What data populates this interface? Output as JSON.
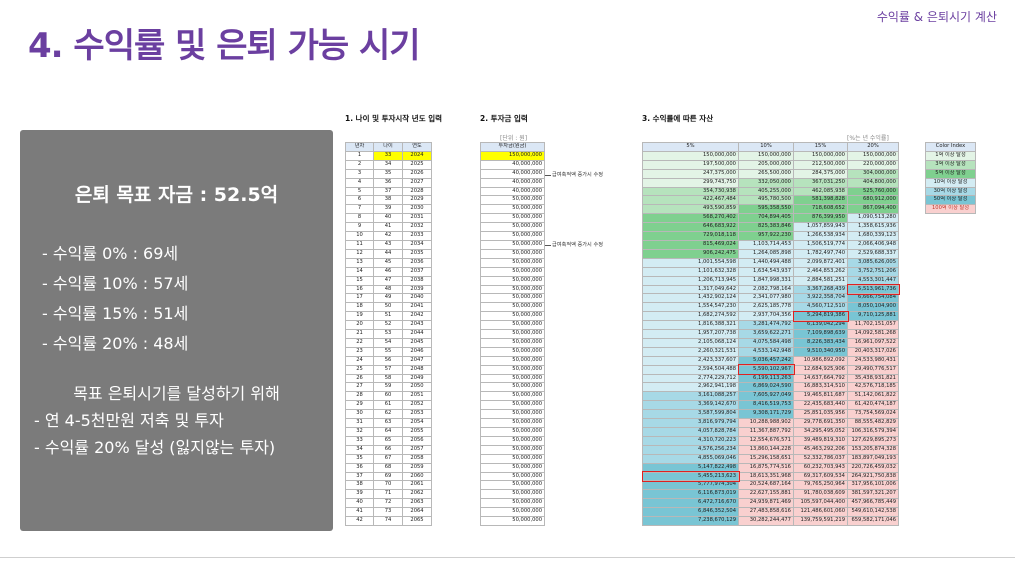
{
  "header": {
    "title": "4. 수익률 및 은퇴 가능 시기",
    "tag": "수익률 & 은퇴시기 계산"
  },
  "summary": {
    "goal": "은퇴 목표 자금 : 52.5억",
    "lines": [
      "- 수익률   0% : 69세",
      "- 수익률 10% : 57세",
      "- 수익률 15% : 51세",
      "- 수익률 20% : 48세"
    ],
    "subtitle": "목표 은퇴시기를 달성하기 위해",
    "actions": [
      "- 연 4-5천만원 저축 및 투자",
      "- 수익률 20% 달성 (잃지않는 투자)"
    ]
  },
  "sections": {
    "s1": "1. 나이 및 투자시작 년도 입력",
    "s2": "2. 투자금 입력",
    "s3": "3. 수익률에 따른 자산"
  },
  "notes": {
    "unit_won": "[단위 : 원]",
    "unit_rate": "[%는 년 수익률]",
    "note1": "급여축적액 증가시 수정",
    "note2": "급여축적액 증가시 수정"
  },
  "table1": {
    "headers": [
      "년차",
      "나이",
      "연도"
    ],
    "rows": [
      [
        "1",
        "33",
        "2024"
      ],
      [
        "2",
        "34",
        "2025"
      ],
      [
        "3",
        "35",
        "2026"
      ],
      [
        "4",
        "36",
        "2027"
      ],
      [
        "5",
        "37",
        "2028"
      ],
      [
        "6",
        "38",
        "2029"
      ],
      [
        "7",
        "39",
        "2030"
      ],
      [
        "8",
        "40",
        "2031"
      ],
      [
        "9",
        "41",
        "2032"
      ],
      [
        "10",
        "42",
        "2033"
      ],
      [
        "11",
        "43",
        "2034"
      ],
      [
        "12",
        "44",
        "2035"
      ],
      [
        "13",
        "45",
        "2036"
      ],
      [
        "14",
        "46",
        "2037"
      ],
      [
        "15",
        "47",
        "2038"
      ],
      [
        "16",
        "48",
        "2039"
      ],
      [
        "17",
        "49",
        "2040"
      ],
      [
        "18",
        "50",
        "2041"
      ],
      [
        "19",
        "51",
        "2042"
      ],
      [
        "20",
        "52",
        "2043"
      ],
      [
        "21",
        "53",
        "2044"
      ],
      [
        "22",
        "54",
        "2045"
      ],
      [
        "23",
        "55",
        "2046"
      ],
      [
        "24",
        "56",
        "2047"
      ],
      [
        "25",
        "57",
        "2048"
      ],
      [
        "26",
        "58",
        "2049"
      ],
      [
        "27",
        "59",
        "2050"
      ],
      [
        "28",
        "60",
        "2051"
      ],
      [
        "29",
        "61",
        "2052"
      ],
      [
        "30",
        "62",
        "2053"
      ],
      [
        "31",
        "63",
        "2054"
      ],
      [
        "32",
        "64",
        "2055"
      ],
      [
        "33",
        "65",
        "2056"
      ],
      [
        "34",
        "66",
        "2057"
      ],
      [
        "35",
        "67",
        "2058"
      ],
      [
        "36",
        "68",
        "2059"
      ],
      [
        "37",
        "69",
        "2060"
      ],
      [
        "38",
        "70",
        "2061"
      ],
      [
        "39",
        "71",
        "2062"
      ],
      [
        "40",
        "72",
        "2063"
      ],
      [
        "41",
        "73",
        "2064"
      ],
      [
        "42",
        "74",
        "2065"
      ]
    ]
  },
  "table2": {
    "header": "투자금(원금)",
    "rows": [
      "150,000,000",
      "40,000,000",
      "40,000,000",
      "40,000,000",
      "40,000,000",
      "50,000,000",
      "50,000,000",
      "50,000,000",
      "50,000,000",
      "50,000,000",
      "50,000,000",
      "50,000,000",
      "50,000,000",
      "50,000,000",
      "50,000,000",
      "50,000,000",
      "50,000,000",
      "50,000,000",
      "50,000,000",
      "50,000,000",
      "50,000,000",
      "50,000,000",
      "50,000,000",
      "50,000,000",
      "50,000,000",
      "50,000,000",
      "50,000,000",
      "50,000,000",
      "50,000,000",
      "50,000,000",
      "50,000,000",
      "50,000,000",
      "50,000,000",
      "50,000,000",
      "50,000,000",
      "50,000,000",
      "50,000,000",
      "50,000,000",
      "50,000,000",
      "50,000,000",
      "50,000,000",
      "50,000,000"
    ]
  },
  "table3": {
    "headers": [
      "5%",
      "10%",
      "15%",
      "20%"
    ],
    "rows": [
      [
        "150,000,000",
        "150,000,000",
        "150,000,000",
        "150,000,000"
      ],
      [
        "197,500,000",
        "205,000,000",
        "212,500,000",
        "220,000,000"
      ],
      [
        "247,375,000",
        "265,500,000",
        "284,375,000",
        "304,000,000"
      ],
      [
        "299,743,750",
        "332,050,000",
        "367,031,250",
        "404,800,000"
      ],
      [
        "354,730,938",
        "405,255,000",
        "462,085,938",
        "525,760,000"
      ],
      [
        "422,467,484",
        "495,780,500",
        "581,398,828",
        "680,912,000"
      ],
      [
        "493,590,859",
        "595,358,550",
        "718,608,652",
        "867,094,400"
      ],
      [
        "568,270,402",
        "704,894,405",
        "876,399,950",
        "1,090,513,280"
      ],
      [
        "646,683,922",
        "825,383,846",
        "1,057,859,943",
        "1,358,615,936"
      ],
      [
        "729,018,118",
        "957,922,230",
        "1,266,538,934",
        "1,680,339,123"
      ],
      [
        "815,469,024",
        "1,103,714,453",
        "1,506,519,774",
        "2,066,406,948"
      ],
      [
        "906,242,475",
        "1,264,085,898",
        "1,782,497,740",
        "2,529,688,337"
      ],
      [
        "1,001,554,598",
        "1,440,494,488",
        "2,099,872,401",
        "3,085,626,005"
      ],
      [
        "1,101,632,328",
        "1,634,543,937",
        "2,464,853,262",
        "3,752,751,206"
      ],
      [
        "1,206,713,945",
        "1,847,998,331",
        "2,884,581,251",
        "4,553,301,447"
      ],
      [
        "1,317,049,642",
        "2,082,798,164",
        "3,367,268,439",
        "5,513,961,736"
      ],
      [
        "1,432,902,124",
        "2,341,077,980",
        "3,922,358,704",
        "6,666,754,084"
      ],
      [
        "1,554,547,230",
        "2,625,185,778",
        "4,560,712,510",
        "8,050,104,900"
      ],
      [
        "1,682,274,592",
        "2,937,704,356",
        "5,294,819,386",
        "9,710,125,881"
      ],
      [
        "1,816,388,321",
        "3,281,474,792",
        "6,139,042,294",
        "11,702,151,057"
      ],
      [
        "1,957,207,738",
        "3,659,622,271",
        "7,109,898,639",
        "14,092,581,268"
      ],
      [
        "2,105,068,124",
        "4,075,584,498",
        "8,226,383,434",
        "16,961,097,522"
      ],
      [
        "2,260,321,531",
        "4,533,142,948",
        "9,510,340,950",
        "20,403,317,026"
      ],
      [
        "2,423,337,607",
        "5,036,457,242",
        "10,986,892,092",
        "24,533,980,431"
      ],
      [
        "2,594,504,488",
        "5,590,102,967",
        "12,684,925,906",
        "29,490,776,517"
      ],
      [
        "2,774,229,712",
        "6,199,113,263",
        "14,637,664,792",
        "35,438,931,821"
      ],
      [
        "2,962,941,198",
        "6,869,024,590",
        "16,883,314,510",
        "42,576,718,185"
      ],
      [
        "3,161,088,257",
        "7,605,927,049",
        "19,465,811,687",
        "51,142,061,822"
      ],
      [
        "3,369,142,670",
        "8,416,519,753",
        "22,435,683,440",
        "61,420,474,187"
      ],
      [
        "3,587,599,804",
        "9,308,171,729",
        "25,851,035,956",
        "73,754,569,024"
      ],
      [
        "3,816,979,794",
        "10,288,988,902",
        "29,778,691,350",
        "88,555,482,829"
      ],
      [
        "4,057,828,784",
        "11,367,887,792",
        "34,295,495,052",
        "106,316,579,394"
      ],
      [
        "4,310,720,223",
        "12,554,676,571",
        "39,489,819,310",
        "127,629,895,273"
      ],
      [
        "4,576,256,234",
        "13,860,144,228",
        "45,463,292,206",
        "153,205,874,328"
      ],
      [
        "4,855,069,046",
        "15,296,158,651",
        "52,332,786,037",
        "183,897,049,193"
      ],
      [
        "5,147,822,498",
        "16,875,774,516",
        "60,232,703,943",
        "220,726,459,032"
      ],
      [
        "5,455,213,623",
        "18,613,351,968",
        "69,317,609,534",
        "264,921,750,838"
      ],
      [
        "5,777,974,304",
        "20,524,687,164",
        "79,765,250,964",
        "317,956,101,006"
      ],
      [
        "6,116,873,019",
        "22,627,155,881",
        "91,780,038,609",
        "381,597,321,207"
      ],
      [
        "6,472,716,670",
        "24,939,871,469",
        "105,597,044,400",
        "457,966,785,449"
      ],
      [
        "6,846,352,504",
        "27,483,858,616",
        "121,486,601,060",
        "549,610,142,538"
      ],
      [
        "7,238,670,129",
        "30,282,244,477",
        "139,759,591,219",
        "659,582,171,046"
      ]
    ]
  },
  "legend": {
    "title": "Color Index",
    "items": [
      "1억 이상 달성",
      "3억 이상 달성",
      "5억 이상 달성",
      "10억 이상 달성",
      "30억 이상 달성",
      "50억 이상 달성",
      "100억 이상 달성"
    ]
  },
  "colors": {
    "title": "#6b3fa0",
    "tier_1": "#e3f4e6",
    "tier_3": "#b6e3bd",
    "tier_5": "#7fd08f",
    "tier_10": "#d3ecf3",
    "tier_30": "#a7d9e6",
    "tier_50": "#79c5d4",
    "tier_100": "#f9d0cf"
  }
}
